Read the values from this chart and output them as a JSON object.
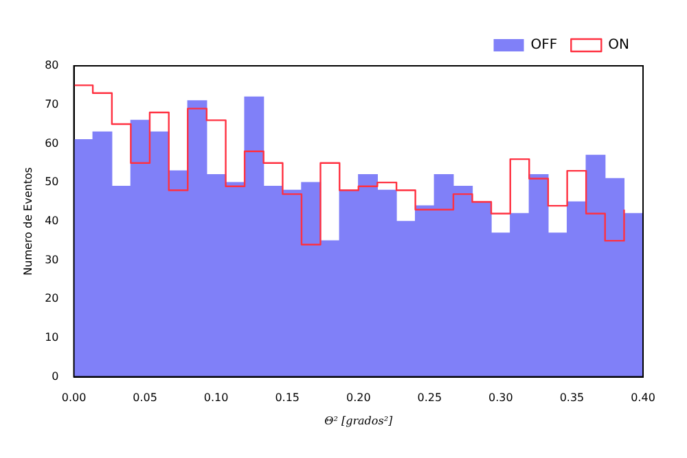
{
  "chart_data": {
    "type": "histogram",
    "xlabel": "Θ² [grados²]",
    "ylabel": "Numero de Eventos",
    "bins": [
      0,
      0.0133,
      0.0267,
      0.04,
      0.0533,
      0.0667,
      0.08,
      0.0933,
      0.1067,
      0.12,
      0.1333,
      0.1467,
      0.16,
      0.1733,
      0.1867,
      0.2,
      0.2133,
      0.2267,
      0.24,
      0.2533,
      0.2667,
      0.28,
      0.2933,
      0.3067,
      0.32,
      0.3333,
      0.3467,
      0.36,
      0.3733,
      0.3867,
      0.4
    ],
    "series": [
      {
        "name": "OFF",
        "color": "#8080f8",
        "values": [
          61,
          63,
          49,
          66,
          63,
          53,
          71,
          52,
          50,
          72,
          49,
          48,
          50,
          35,
          48,
          52,
          48,
          40,
          44,
          52,
          49,
          45,
          37,
          42,
          52,
          37,
          45,
          57,
          51,
          42
        ]
      },
      {
        "name": "ON",
        "color": "#ff3040",
        "type": "step",
        "x": [
          0,
          0.0133,
          0.0267,
          0.04,
          0.0533,
          0.0667,
          0.08,
          0.0933,
          0.1067,
          0.12,
          0.1333,
          0.1467,
          0.16,
          0.1733,
          0.1867,
          0.2,
          0.2133,
          0.2267,
          0.24,
          0.2533,
          0.2667,
          0.28,
          0.2933,
          0.3067,
          0.32,
          0.3333,
          0.3467,
          0.36,
          0.3733,
          0.3867
        ],
        "values": [
          75,
          73,
          65,
          55,
          68,
          48,
          69,
          66,
          49,
          58,
          55,
          47,
          34,
          55,
          48,
          49,
          50,
          48,
          43,
          43,
          47,
          45,
          42,
          56,
          51,
          44,
          53,
          42,
          35,
          43
        ]
      }
    ],
    "xlim": [
      0,
      0.4
    ],
    "xticks": [
      {
        "value": 0,
        "label": "0.00"
      },
      0.05,
      {
        "value": 0.1,
        "label": "0.10"
      },
      0.15,
      {
        "value": 0.2,
        "label": "0.20"
      },
      0.25,
      {
        "value": 0.3,
        "label": "0.30"
      },
      0.35,
      {
        "value": 0.4,
        "label": "0.40"
      }
    ],
    "ylim": [
      0,
      80
    ],
    "yticks": [
      0,
      10,
      20,
      30,
      40,
      50,
      60,
      70,
      80
    ],
    "legend": "top right"
  }
}
